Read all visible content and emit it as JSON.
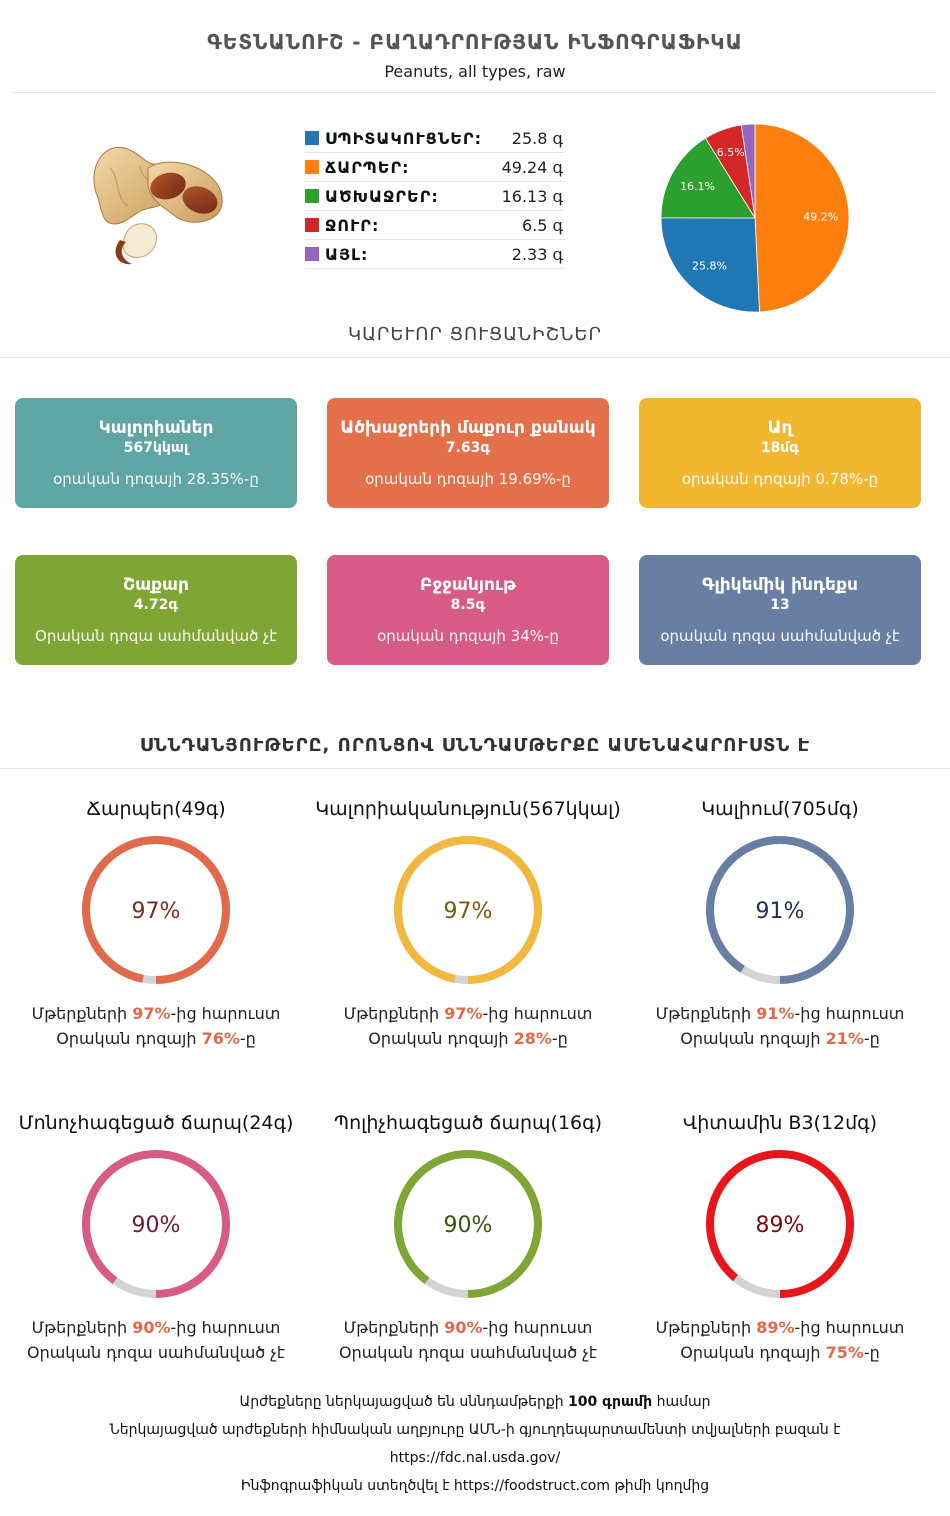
{
  "header": {
    "title": "ԳԵՏՆԱՆՈՒՇ - ԲԱՂԱԴՐՈՒԹՅԱՆ ԻՆՖՈԳՐԱՖԻԿԱ",
    "subtitle": "Peanuts, all types, raw"
  },
  "composition": {
    "items": [
      {
        "label": "ՍՊԻՏԱԿՈՒՑՆԵՐ:",
        "value": "25.8 գ",
        "color": "#1f77b4"
      },
      {
        "label": "ՃԱՐՊԵՐ:",
        "value": "49.24 գ",
        "color": "#ff7f0e"
      },
      {
        "label": "ԱԾԽԱՋՐԵՐ:",
        "value": "16.13 գ",
        "color": "#2ca02c"
      },
      {
        "label": "ՋՈՒՐ:",
        "value": "6.5 գ",
        "color": "#d62728"
      },
      {
        "label": "ԱՅԼ:",
        "value": "2.33 գ",
        "color": "#9467bd"
      }
    ]
  },
  "chart_data": {
    "type": "pie",
    "categories": [
      "ՍՊԻՏԱԿՈՒՑՆԵՐ",
      "ՃԱՐՊԵՐ",
      "ԱԾԽԱՋՐԵՐ",
      "ՋՈՒՐ",
      "ԱՅԼ"
    ],
    "values": [
      25.8,
      49.24,
      16.13,
      6.5,
      2.33
    ],
    "labels": [
      "25.8%",
      "49.2%",
      "16.1%",
      "6.5%",
      ""
    ],
    "colors": [
      "#1f77b4",
      "#ff7f0e",
      "#2ca02c",
      "#d62728",
      "#9467bd"
    ]
  },
  "key_features": {
    "title": "ԿԱՐԵՒՈՐ ՑՈՒՑԱՆԻՇՆԵՐ",
    "cards": [
      {
        "name": "Կալորիաներ",
        "value": "567կկալ",
        "daily": "օրական դոզայի 28.35%-ը",
        "color": "#5ea5a3"
      },
      {
        "name": "Ածխաջրերի մաքուր քանակ",
        "value": "7.63գ",
        "daily": "օրական դոզայի 19.69%-ը",
        "color": "#e4704b"
      },
      {
        "name": "Աղ",
        "value": "18մգ",
        "daily": "օրական դոզայի 0.78%-ը",
        "color": "#f2b731"
      },
      {
        "name": "Շաքար",
        "value": "4.72գ",
        "daily": "Օրական դոզա սահմանված չէ",
        "color": "#7fa534"
      },
      {
        "name": "Բջջանյութ",
        "value": "8.5գ",
        "daily": "օրական դոզայի 34%-ը",
        "color": "#d85a87"
      },
      {
        "name": "Գլիկեմիկ ինդեքս",
        "value": "13",
        "daily": "օրական դոզա սահմանված չէ",
        "color": "#687fa3"
      }
    ]
  },
  "rich_in": {
    "title": "ՍՆՆԴԱՆՅՈՒԹԵՐԸ, ՈՐՈՆՑՈՎ ՍՆՆԴԱՄԹԵՐՔԸ ԱՄԵՆԱՀԱՐՈՒՍՏՆ Է",
    "items": [
      {
        "name": "Ճարպեր(49գ)",
        "pct": 97,
        "pct_label": "97%",
        "rich_pre": "Մթերքների ",
        "rich_pct": "97%",
        "rich_post": "-ից հարուստ",
        "daily_pre": "Օրական դոզայի ",
        "daily_pct": "76%",
        "daily_post": "-ը",
        "color": "#e06a4a",
        "text_color": "#7a2e1a"
      },
      {
        "name": "Կալորիականություն(567կկալ)",
        "pct": 97,
        "pct_label": "97%",
        "rich_pre": "Մթերքների ",
        "rich_pct": "97%",
        "rich_post": "-ից հարուստ",
        "daily_pre": "Օրական դոզայի ",
        "daily_pct": "28%",
        "daily_post": "-ը",
        "color": "#f0b83c",
        "text_color": "#7a5a10"
      },
      {
        "name": "Կալիում(705մգ)",
        "pct": 91,
        "pct_label": "91%",
        "rich_pre": "Մթերքների ",
        "rich_pct": "91%",
        "rich_post": "-ից հարուստ",
        "daily_pre": "Օրական դոզայի ",
        "daily_pct": "21%",
        "daily_post": "-ը",
        "color": "#687fa3",
        "text_color": "#1f2f4f"
      },
      {
        "name": "Մոնոչհագեցած ճարպ(24գ)",
        "pct": 90,
        "pct_label": "90%",
        "rich_pre": "Մթերքների ",
        "rich_pct": "90%",
        "rich_post": "-ից հարուստ",
        "daily_pre": "Օրական դոզա սահմանված չէ",
        "daily_pct": "",
        "daily_post": "",
        "color": "#d85a87",
        "text_color": "#6a1a3a"
      },
      {
        "name": "Պոլիչհագեցած ճարպ(16գ)",
        "pct": 90,
        "pct_label": "90%",
        "rich_pre": "Մթերքների ",
        "rich_pct": "90%",
        "rich_post": "-ից հարուստ",
        "daily_pre": "Օրական դոզա սահմանված չէ",
        "daily_pct": "",
        "daily_post": "",
        "color": "#7fa534",
        "text_color": "#3a5210"
      },
      {
        "name": "Վիտամին B3(12մգ)",
        "pct": 89,
        "pct_label": "89%",
        "rich_pre": "Մթերքների ",
        "rich_pct": "89%",
        "rich_post": "-ից հարուստ",
        "daily_pre": "Օրական դոզայի ",
        "daily_pct": "75%",
        "daily_post": "-ը",
        "color": "#e8151b",
        "text_color": "#7a0a0d"
      }
    ]
  },
  "footer": {
    "line1_pre": "Արժեքները ներկայացված են սննդամթերքի ",
    "line1_bold": "100 գրամի",
    "line1_post": " համար",
    "line2": "Ներկայացված արժեքների հիմնական աղբյուրը ԱՄՆ-ի գյուղդեպարտամենտի տվյալների բազան է",
    "line3": "https://fdc.nal.usda.gov/",
    "line4_pre": "Ինֆոգրաֆիկան ստեղծվել է ",
    "line4_link": "https://foodstruct.com",
    "line4_post": " թիմի կողմից"
  }
}
